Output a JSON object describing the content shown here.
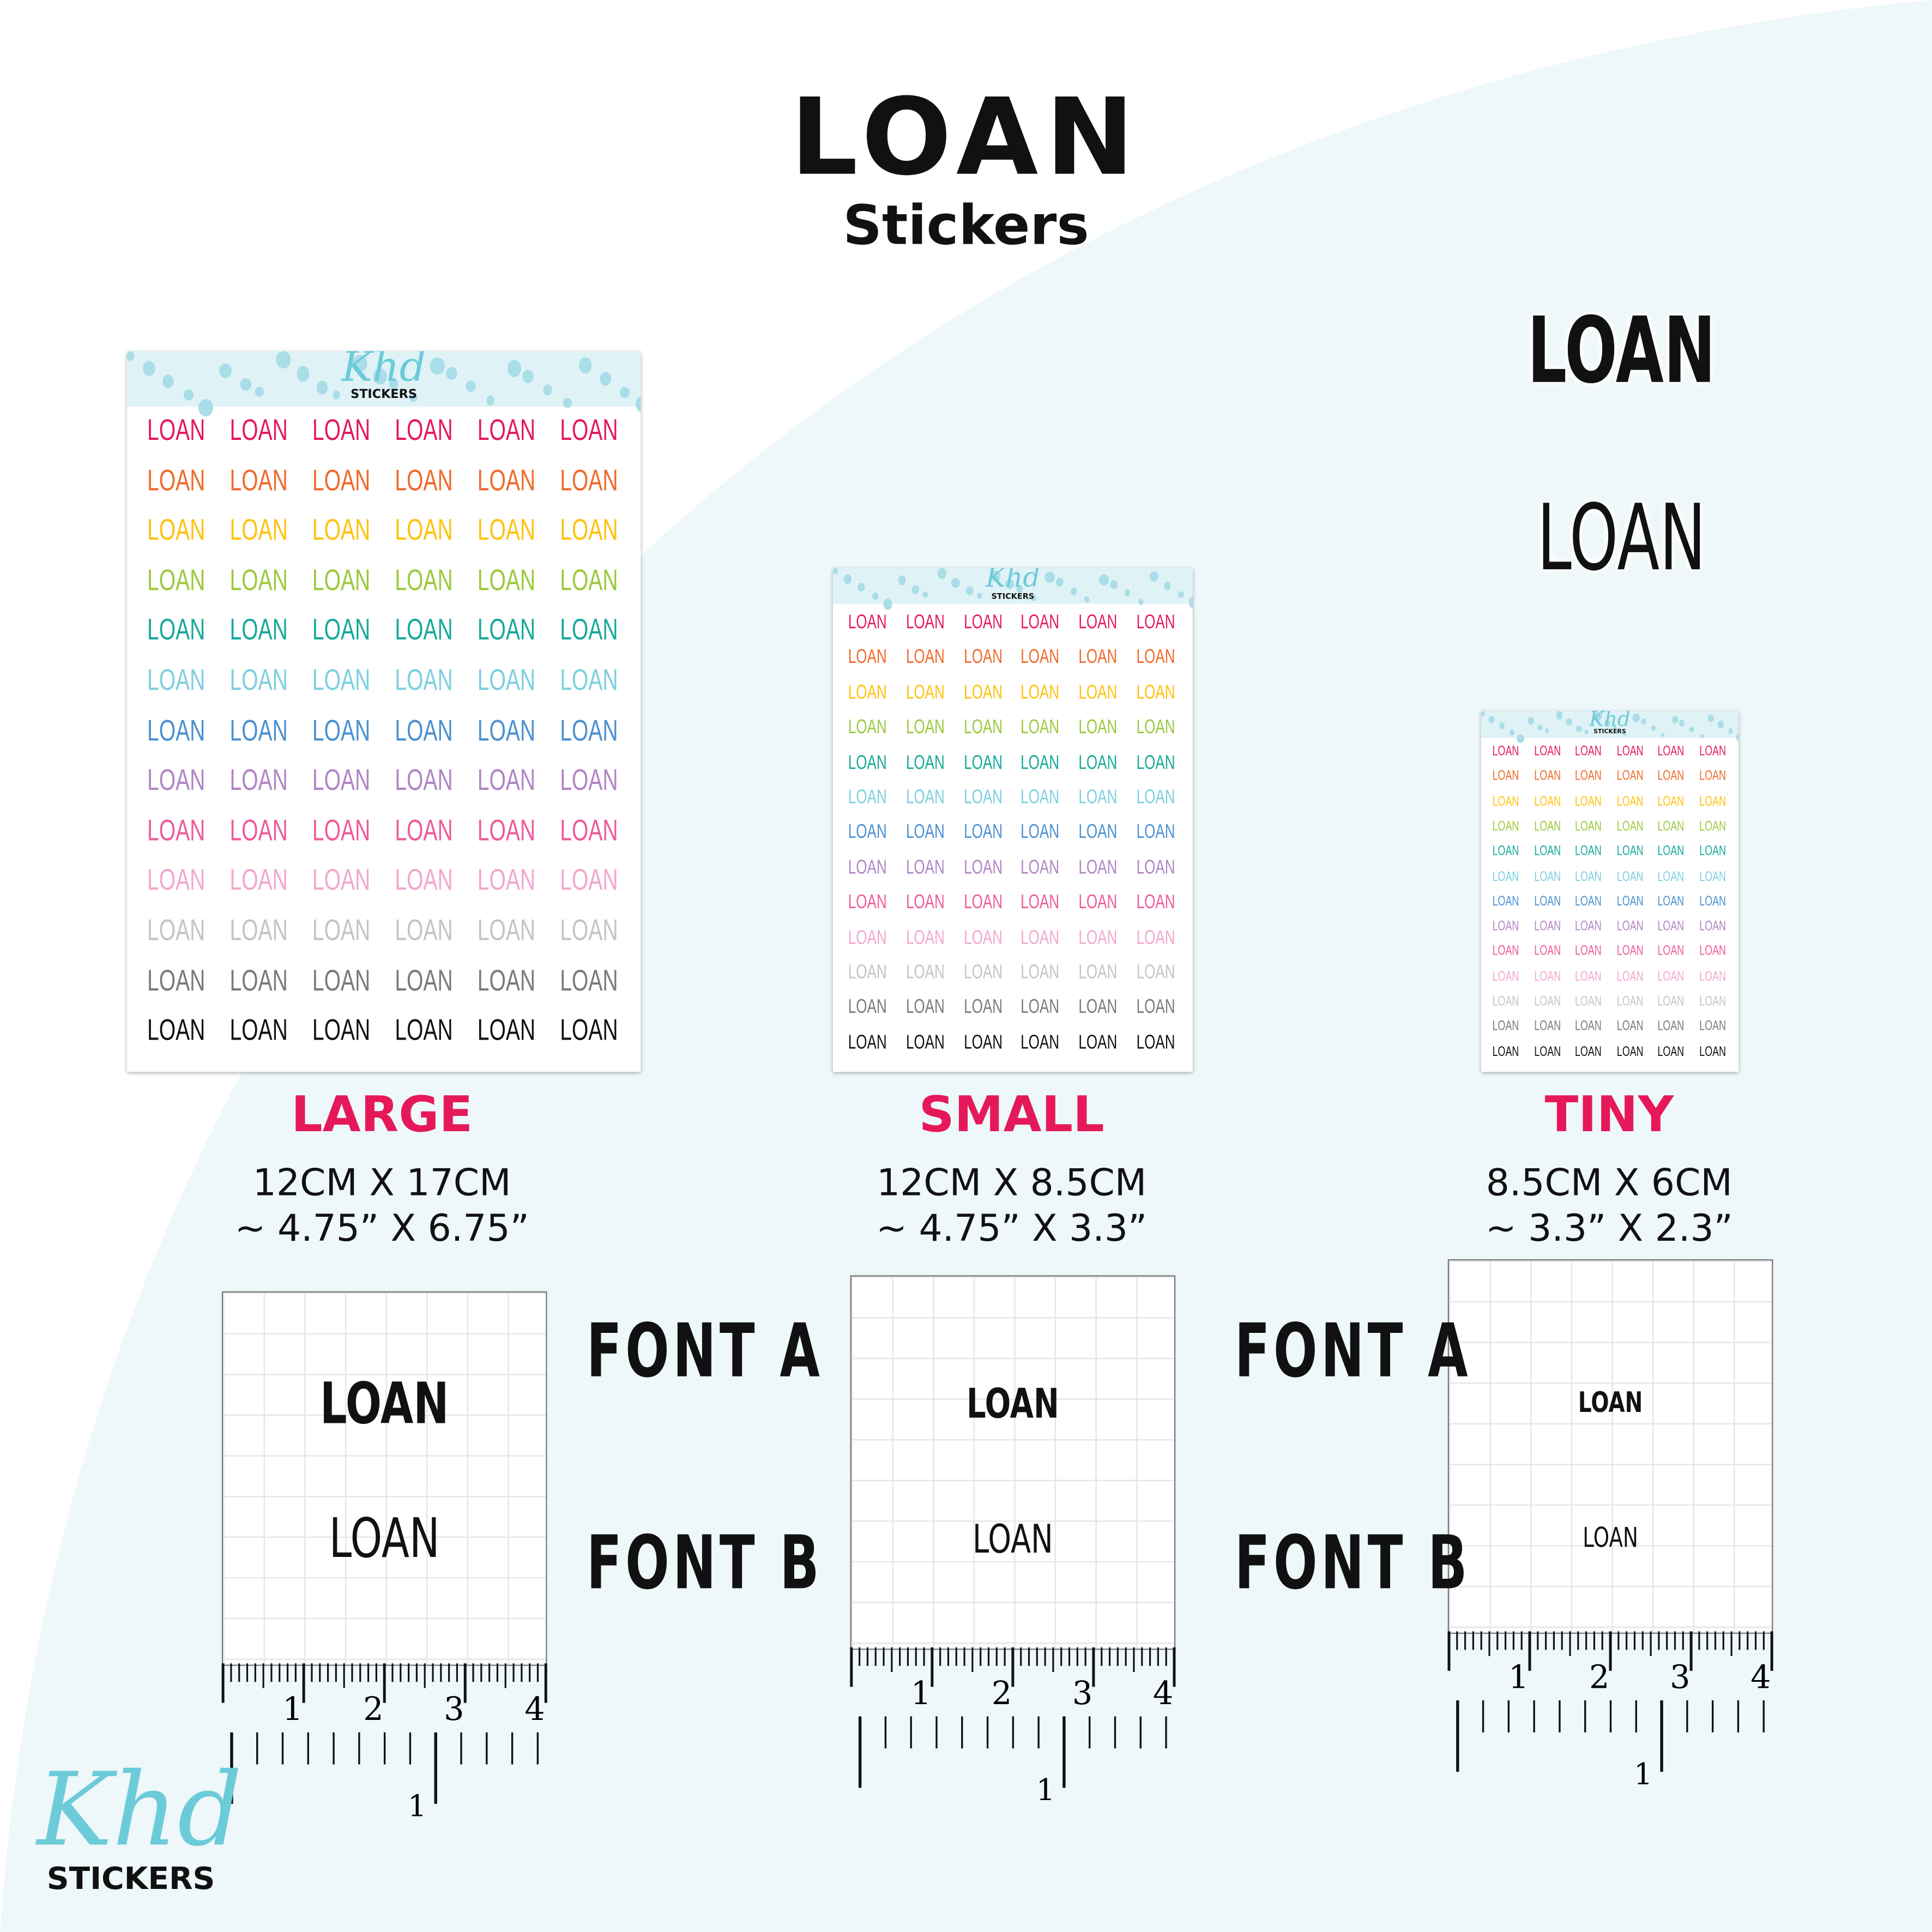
{
  "header": {
    "title": "LOAN",
    "subtitle": "Stickers"
  },
  "sticker_word": "LOAN",
  "row_colors": [
    "#e5195a",
    "#ef6a2a",
    "#ffc20e",
    "#9bc93b",
    "#16a99a",
    "#7ccfe0",
    "#4a90d0",
    "#b084c4",
    "#ee5a9a",
    "#f2a7cf",
    "#c4c4c4",
    "#7a7a7a",
    "#111111"
  ],
  "sheet_logo": {
    "script": "Khd",
    "text": "STICKERS"
  },
  "sizes": [
    {
      "name": "LARGE",
      "metric": "12CM X 17CM",
      "imperial": "~ 4.75” X 6.75”"
    },
    {
      "name": "SMALL",
      "metric": "12CM X 8.5CM",
      "imperial": "~ 4.75” X 3.3”"
    },
    {
      "name": "TINY",
      "metric": "8.5CM X 6CM",
      "imperial": "~ 3.3” X 2.3”"
    }
  ],
  "samples": {
    "font_a": "LOAN",
    "font_b": "LOAN"
  },
  "font_labels": {
    "a": "FONT A",
    "b": "FONT B"
  },
  "ruler": {
    "cm_labels": [
      "1",
      "2",
      "3",
      "4"
    ],
    "inch_label": "1"
  },
  "brand": {
    "script": "Khd",
    "text": "STICKERS",
    "accent": "#6ccbd9"
  },
  "background_accent": "#eef7f9",
  "title_accent": "#e5195a"
}
